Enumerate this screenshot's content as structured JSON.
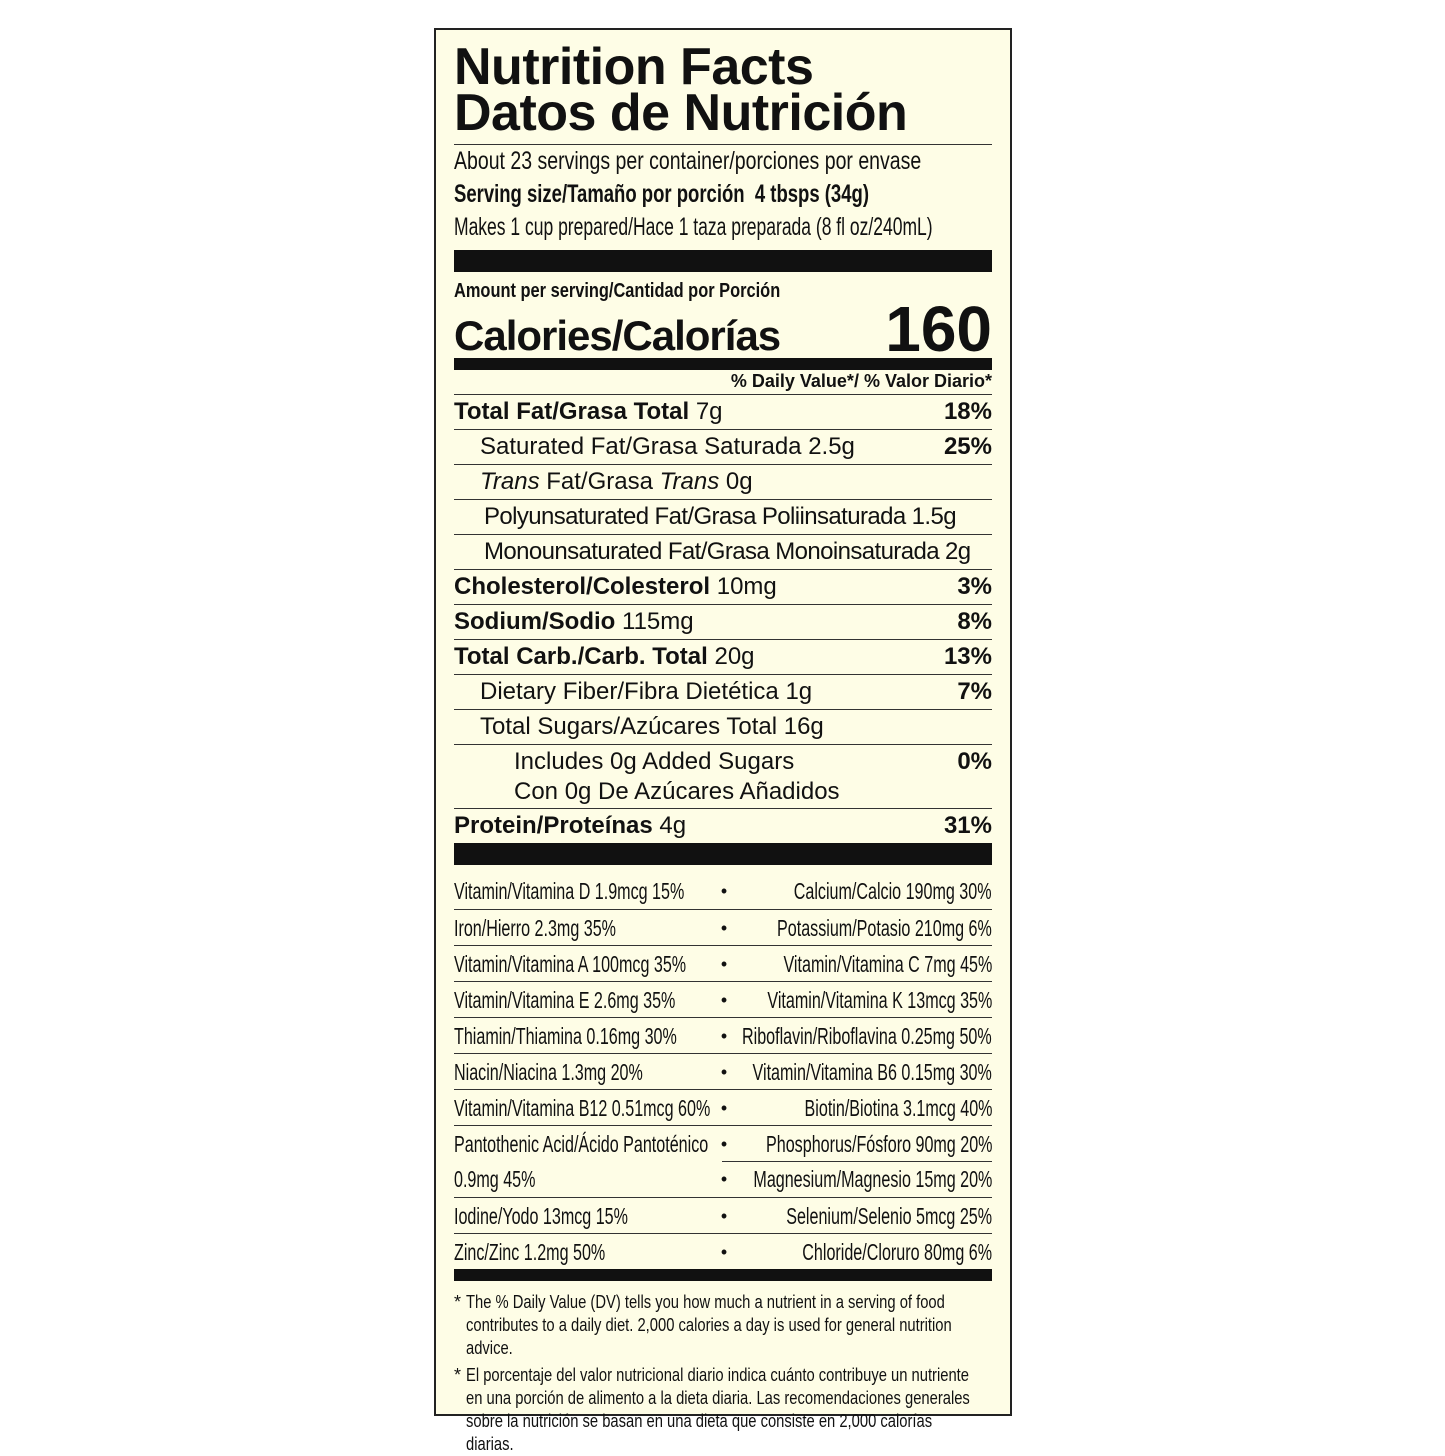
{
  "title_en": "Nutrition Facts",
  "title_es": "Datos de Nutrición",
  "servings": "About 23 servings per container/porciones por envase",
  "serving_size_label": "Serving size/Tamaño por porción",
  "serving_size_value": "4 tbsps (34g)",
  "makes": "Makes 1 cup prepared/Hace 1 taza preparada (8 fl oz/240mL)",
  "amount_per_serving": "Amount per serving/Cantidad por Porción",
  "calories_label": "Calories/Calorías",
  "calories_value": "160",
  "dv_header": "% Daily Value*/ % Valor Diario*",
  "nutrients": [
    {
      "label": "Total Fat/Grasa Total",
      "amount": "7g",
      "dv": "18%"
    },
    {
      "label": "Saturated Fat/Grasa Saturada",
      "amount": "2.5g",
      "dv": "25%"
    },
    {
      "label_pre": "Trans",
      "label_mid": " Fat/Grasa ",
      "label_post": "Trans",
      "amount": "0g"
    },
    {
      "label": "Polyunsaturated Fat/Grasa Poliinsaturada",
      "amount": "1.5g"
    },
    {
      "label": "Monounsaturated Fat/Grasa Monoinsaturada",
      "amount": "2g"
    },
    {
      "label": "Cholesterol/Colesterol",
      "amount": "10mg",
      "dv": "3%"
    },
    {
      "label": "Sodium/Sodio",
      "amount": "115mg",
      "dv": "8%"
    },
    {
      "label": "Total Carb./Carb. Total",
      "amount": "20g",
      "dv": "13%"
    },
    {
      "label": "Dietary Fiber/Fibra Dietética",
      "amount": "1g",
      "dv": "7%"
    },
    {
      "label": "Total Sugars/Azúcares Total",
      "amount": "16g"
    },
    {
      "line1": "Includes 0g Added Sugars",
      "line2": "Con 0g De Azúcares Añadidos",
      "dv": "0%"
    },
    {
      "label": "Protein/Proteínas",
      "amount": "4g",
      "dv": "31%"
    }
  ],
  "vitamins": [
    [
      "Vitamin/Vitamina D 1.9mcg 15%",
      "Calcium/Calcio 190mg 30%"
    ],
    [
      "Iron/Hierro 2.3mg 35%",
      "Potassium/Potasio 210mg 6%"
    ],
    [
      "Vitamin/Vitamina A 100mcg 35%",
      "Vitamin/Vitamina C 7mg 45%"
    ],
    [
      "Vitamin/Vitamina E 2.6mg 35%",
      "Vitamin/Vitamina K 13mcg 35%"
    ],
    [
      "Thiamin/Thiamina 0.16mg 30%",
      "Riboflavin/Riboflavina 0.25mg 50%"
    ],
    [
      "Niacin/Niacina 1.3mg 20%",
      "Vitamin/Vitamina B6 0.15mg 30%"
    ],
    [
      "Vitamin/Vitamina B12 0.51mcg 60%",
      "Biotin/Biotina 3.1mcg 40%"
    ],
    [
      "Pantothenic Acid/Ácido Pantoténico",
      "Phosphorus/Fósforo 90mg 20%"
    ],
    [
      "0.9mg 45%",
      "Magnesium/Magnesio 15mg 20%"
    ],
    [
      "Iodine/Yodo 13mcg 15%",
      "Selenium/Selenio 5mcg 25%"
    ],
    [
      "Zinc/Zinc 1.2mg 50%",
      "Chloride/Cloruro 80mg 6%"
    ]
  ],
  "footnote_en": "The % Daily Value (DV) tells you how much a nutrient in a serving of food contributes to a daily diet. 2,000 calories a day is used for general nutrition advice.",
  "footnote_es": "El porcentaje del valor nutricional diario indica cuánto contribuye un nutriente en una porción de alimento a la dieta diaria. Las recomendaciones generales sobre la nutrición se basan en una dieta que consiste en 2,000 calorías diarias.",
  "footnote_star": "*",
  "bullet": "•"
}
